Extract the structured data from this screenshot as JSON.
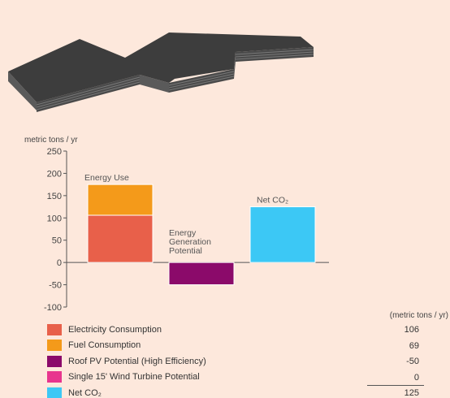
{
  "chart_data": {
    "type": "bar",
    "y_unit_label": "metric tons / yr",
    "ylim": [
      -100,
      250
    ],
    "yticks": [
      250,
      200,
      150,
      100,
      50,
      0,
      -50,
      -100
    ],
    "grid": false,
    "bars": [
      {
        "annotation": "Energy Use",
        "segments": [
          {
            "series": "Electricity Consumption",
            "value": 106
          },
          {
            "series": "Fuel Consumption",
            "value": 69
          }
        ]
      },
      {
        "annotation": "Energy Generation Potential",
        "annotation_lines": [
          "Energy",
          "Generation",
          "Potential"
        ],
        "segments": [
          {
            "series": "Roof PV Potential (High Efficiency)",
            "value": -50
          }
        ]
      },
      {
        "annotation": "Net CO₂",
        "segments": [
          {
            "series": "Net CO₂",
            "value": 125
          }
        ]
      }
    ],
    "legend_placement": "bottom"
  },
  "legend": {
    "items": [
      {
        "label": "Electricity Consumption",
        "color": "#e8604a",
        "value": "106"
      },
      {
        "label": "Fuel Consumption",
        "color": "#f49a1a",
        "value": "69"
      },
      {
        "label": "Roof PV Potential (High Efficiency)",
        "color": "#8b0a6a",
        "value": "-50"
      },
      {
        "label": "Single 15' Wind Turbine Potential",
        "color": "#e8358e",
        "value": "0"
      },
      {
        "label": "Net CO₂",
        "color": "#3cc8f5",
        "value": "125"
      }
    ]
  },
  "values_header": "(metric tons / yr)",
  "colors": {
    "background": "#fde8dc",
    "axis": "#555555",
    "building_top": "#3a3a3a",
    "building_side": "#555555"
  },
  "illustration": {
    "icon": "building-massing-model-icon"
  }
}
